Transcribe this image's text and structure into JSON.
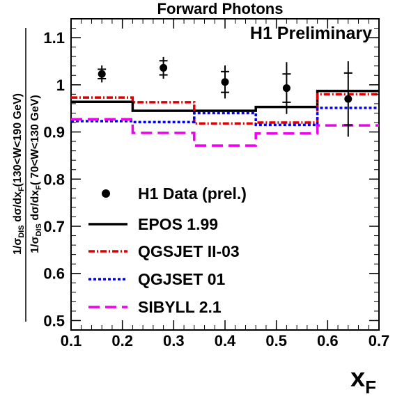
{
  "chart_data": {
    "type": "line",
    "title": "Forward Photons",
    "annotation": "H1 Preliminary",
    "xlabel": "x_F",
    "ylabel_numerator": "1/σ_DIS dσ/dx_F(130<W<190 GeV)",
    "ylabel_denominator": "1/σ_DIS dσ/dx_F( 70<W<130 GeV)",
    "xlim": [
      0.1,
      0.7
    ],
    "ylim": [
      0.48,
      1.14
    ],
    "x_ticks": [
      "0.1",
      "0.2",
      "0.3",
      "0.4",
      "0.5",
      "0.6",
      "0.7"
    ],
    "y_ticks": [
      "0.5",
      "0.6",
      "0.7",
      "0.8",
      "0.9",
      "1",
      "1.1"
    ],
    "bin_edges": [
      0.1,
      0.22,
      0.34,
      0.46,
      0.58,
      0.7
    ],
    "data": {
      "name": "H1 Data (prel.)",
      "x": [
        0.16,
        0.28,
        0.4,
        0.52,
        0.64
      ],
      "y": [
        1.023,
        1.036,
        1.006,
        0.993,
        0.97
      ],
      "stat_err": [
        0.01,
        0.015,
        0.022,
        0.03,
        0.055
      ],
      "tot_err": [
        0.018,
        0.023,
        0.035,
        0.055,
        0.08
      ]
    },
    "series": [
      {
        "name": "EPOS 1.99",
        "style": "solid",
        "color": "#000000",
        "values": [
          0.964,
          0.945,
          0.945,
          0.953,
          0.987
        ]
      },
      {
        "name": "QGSJET II-03",
        "style": "dashdot",
        "color": "#dd0000",
        "values": [
          0.973,
          0.963,
          0.918,
          0.92,
          0.98
        ]
      },
      {
        "name": "QGJSET 01",
        "style": "dotted",
        "color": "#0000ee",
        "values": [
          0.923,
          0.921,
          0.94,
          0.915,
          0.951
        ]
      },
      {
        "name": "SIBYLL 2.1",
        "style": "dashed",
        "color": "#ee00ee",
        "values": [
          0.927,
          0.898,
          0.871,
          0.897,
          0.914
        ]
      }
    ]
  }
}
